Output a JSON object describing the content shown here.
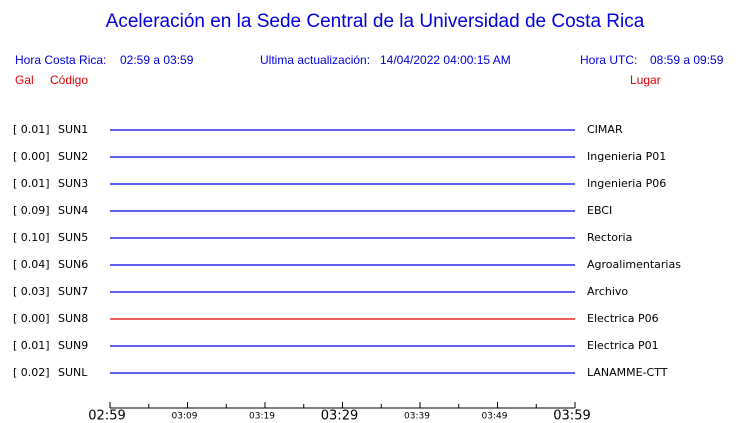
{
  "header": {
    "title": "Aceleración en la Sede Central de la Universidad de Costa Rica",
    "local_label": "Hora Costa Rica:",
    "local_range": "02:59 a 03:59",
    "update_label": "Ultima actualización:",
    "update_time": "14/04/2022 04:00:15 AM",
    "utc_label": "Hora UTC:",
    "utc_range": "08:59 a 09:59",
    "col_gal": "Gal",
    "col_code": "Código",
    "col_place": "Lugar"
  },
  "stations": [
    {
      "gal": "[  0.01]",
      "code": "SUN1",
      "place": "CIMAR",
      "color": "#0000e0"
    },
    {
      "gal": "[  0.00]",
      "code": "SUN2",
      "place": "Ingenieria P01",
      "color": "#0000e0"
    },
    {
      "gal": "[  0.01]",
      "code": "SUN3",
      "place": "Ingenieria P06",
      "color": "#0000e0"
    },
    {
      "gal": "[  0.09]",
      "code": "SUN4",
      "place": "EBCI",
      "color": "#0000e0"
    },
    {
      "gal": "[  0.10]",
      "code": "SUN5",
      "place": "Rectoria",
      "color": "#0000e0"
    },
    {
      "gal": "[  0.04]",
      "code": "SUN6",
      "place": "Agroalimentarias",
      "color": "#0000e0"
    },
    {
      "gal": "[  0.03]",
      "code": "SUN7",
      "place": "Archivo",
      "color": "#0000e0"
    },
    {
      "gal": "[  0.00]",
      "code": "SUN8",
      "place": "Electrica P06",
      "color": "#e00000"
    },
    {
      "gal": "[  0.01]",
      "code": "SUN9",
      "place": "Electrica P01",
      "color": "#0000e0"
    },
    {
      "gal": "[  0.02]",
      "code": "SUNL",
      "place": "LANAMME-CTT",
      "color": "#0000e0"
    }
  ],
  "time_axis": [
    {
      "label": "02:59",
      "major": true
    },
    {
      "label": "03:09",
      "major": false
    },
    {
      "label": "03:19",
      "major": false
    },
    {
      "label": "03:29",
      "major": true
    },
    {
      "label": "03:39",
      "major": false
    },
    {
      "label": "03:49",
      "major": false
    },
    {
      "label": "03:59",
      "major": true
    }
  ]
}
